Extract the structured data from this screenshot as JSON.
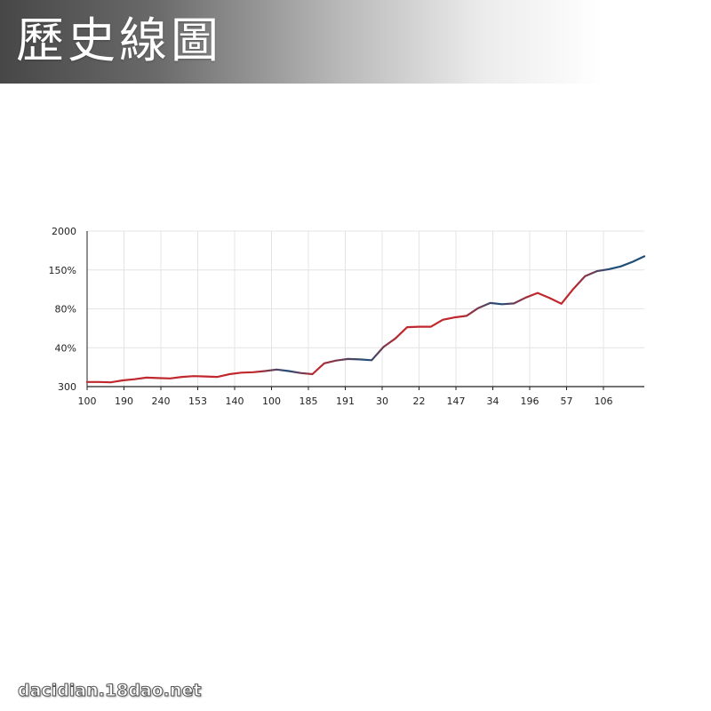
{
  "header": {
    "title": "歷史線圖"
  },
  "footer": {
    "watermark": "dacidian.18dao.net"
  },
  "chart_data": {
    "type": "line",
    "title": "",
    "xlabel": "",
    "ylabel": "",
    "grid": true,
    "legend": "none",
    "x_tick_labels": [
      "100",
      "190",
      "240",
      "153",
      "140",
      "100",
      "185",
      "191",
      "30",
      "22",
      "147",
      "34",
      "196",
      "57",
      "106"
    ],
    "y_tick_labels": [
      "300",
      "40%",
      "80%",
      "150%",
      "2000"
    ],
    "ylim": [
      0,
      4
    ],
    "colors": {
      "warm": "#c0282d",
      "cool": "#1f4e79",
      "axis": "#222222",
      "grid": "#e4e4e4"
    },
    "values": [
      0.12,
      0.12,
      0.11,
      0.16,
      0.19,
      0.23,
      0.22,
      0.21,
      0.25,
      0.27,
      0.26,
      0.25,
      0.32,
      0.36,
      0.37,
      0.4,
      0.44,
      0.4,
      0.35,
      0.32,
      0.6,
      0.67,
      0.71,
      0.7,
      0.68,
      1.02,
      1.24,
      1.53,
      1.54,
      1.54,
      1.72,
      1.78,
      1.82,
      2.02,
      2.15,
      2.12,
      2.14,
      2.29,
      2.41,
      2.28,
      2.13,
      2.51,
      2.84,
      2.97,
      3.02,
      3.09,
      3.21,
      3.35
    ]
  }
}
